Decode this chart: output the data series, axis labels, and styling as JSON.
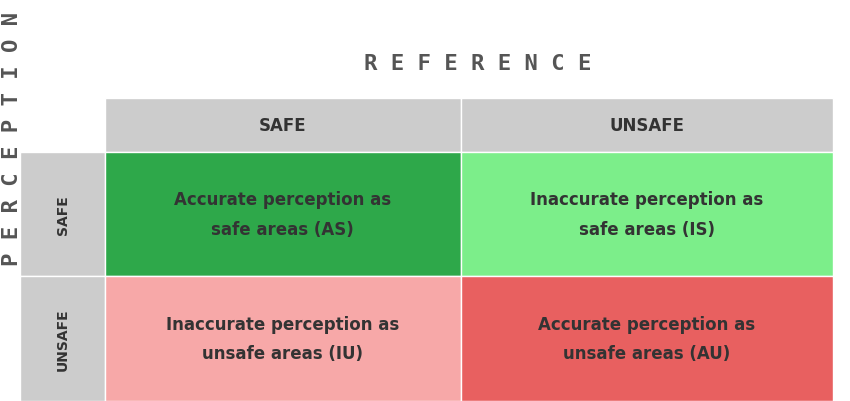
{
  "title": "R E F E R E N C E",
  "y_label": "P E R C E P T I O N",
  "col_headers": [
    "SAFE",
    "UNSAFE"
  ],
  "row_headers": [
    "SAFE",
    "UNSAFE"
  ],
  "cell_texts": [
    [
      "Accurate perception as\nsafe areas (AS)",
      "Inaccurate perception as\nsafe areas (IS)"
    ],
    [
      "Inaccurate perception as\nunsafe areas (IU)",
      "Accurate perception as\nunsafe areas (AU)"
    ]
  ],
  "cell_colors": [
    [
      "#2ea84a",
      "#7cee8a"
    ],
    [
      "#f7a8a8",
      "#e86060"
    ]
  ],
  "header_bg_color": "#cccccc",
  "row_header_bg_color": "#cccccc",
  "background_color": "#ffffff",
  "title_fontsize": 16,
  "header_fontsize": 12,
  "cell_fontsize": 12,
  "row_header_fontsize": 10,
  "cell_text_color": "#333333",
  "header_text_color": "#333333",
  "title_color": "#555555"
}
